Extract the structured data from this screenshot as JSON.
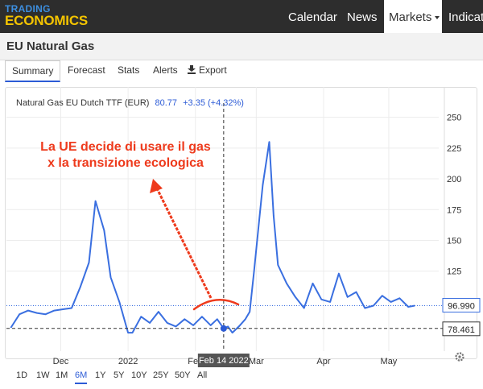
{
  "brand": {
    "line1": "TRADING",
    "line2": "ECONOMICS"
  },
  "nav": {
    "items": [
      "Calendar",
      "News",
      "Markets",
      "Indicat"
    ]
  },
  "page": {
    "title": "EU Natural Gas"
  },
  "tabs": [
    "Summary",
    "Forecast",
    "Stats",
    "Alerts",
    "Export"
  ],
  "colors": {
    "series": "#3a6fe0",
    "annotation": "#ee3a1c",
    "accent": "#2c5bd6",
    "topbar": "#2d2d2d"
  },
  "chart_data": {
    "type": "line",
    "legend": {
      "name": "Natural Gas EU Dutch TTF (EUR)",
      "value": "80.77",
      "change": "+3.35 (+4.32%)"
    },
    "y_ticks": [
      125,
      150,
      175,
      200,
      225,
      250
    ],
    "x_ticks": [
      "Dec",
      "2022",
      "Feb",
      "Mar",
      "Apr",
      "May"
    ],
    "ylim": [
      60,
      255
    ],
    "crosshair": {
      "label": "Feb 14 2022",
      "value": "78.461",
      "y": 78.461
    },
    "last_value": {
      "label": "96.990",
      "y": 96.99
    },
    "annotation": "La UE decide di usare il gas\nx la transizione ecologica",
    "series": [
      {
        "x": [
          "2021-11-08",
          "2021-11-12",
          "2021-11-16",
          "2021-11-20",
          "2021-11-24",
          "2021-11-28",
          "2021-12-02",
          "2021-12-06",
          "2021-12-10",
          "2021-12-14",
          "2021-12-17",
          "2021-12-21",
          "2021-12-24",
          "2021-12-28",
          "2022-01-01",
          "2022-01-03",
          "2022-01-07",
          "2022-01-11",
          "2022-01-15",
          "2022-01-19",
          "2022-01-23",
          "2022-01-27",
          "2022-01-31",
          "2022-02-04",
          "2022-02-08",
          "2022-02-11",
          "2022-02-14",
          "2022-02-16",
          "2022-02-18",
          "2022-02-21",
          "2022-02-24",
          "2022-02-26",
          "2022-02-28",
          "2022-03-02",
          "2022-03-04",
          "2022-03-07",
          "2022-03-09",
          "2022-03-11",
          "2022-03-15",
          "2022-03-19",
          "2022-03-23",
          "2022-03-27",
          "2022-03-31",
          "2022-04-04",
          "2022-04-08",
          "2022-04-12",
          "2022-04-16",
          "2022-04-20",
          "2022-04-24",
          "2022-04-28",
          "2022-05-02",
          "2022-05-06",
          "2022-05-10",
          "2022-05-13"
        ],
        "y": [
          79,
          90,
          93,
          91,
          90,
          93,
          94,
          95,
          112,
          132,
          182,
          158,
          120,
          100,
          75,
          75,
          88,
          83,
          92,
          83,
          80,
          86,
          81,
          88,
          81,
          86,
          78.461,
          80,
          75,
          80,
          86,
          92,
          125,
          160,
          195,
          230,
          170,
          130,
          115,
          104,
          95,
          115,
          102,
          100,
          123,
          104,
          108,
          95,
          97,
          105,
          100,
          103,
          96,
          97
        ]
      }
    ]
  }
}
